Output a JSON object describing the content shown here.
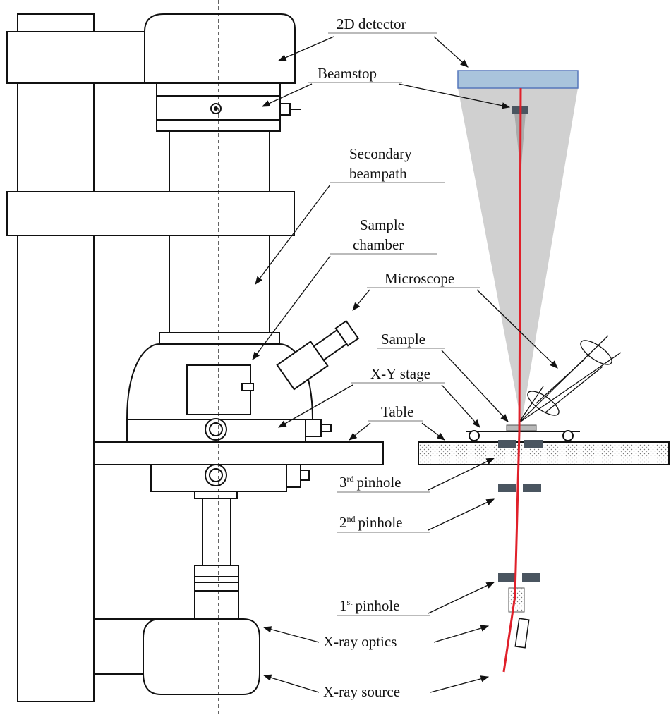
{
  "labels": {
    "detector": "2D detector",
    "beamstop": "Beamstop",
    "secondary_1": "Secondary",
    "secondary_2": "beampath",
    "chamber_1": "Sample",
    "chamber_2": "chamber",
    "microscope": "Microscope",
    "sample": "Sample",
    "xy_stage": "X-Y stage",
    "table": "Table",
    "pinhole3_num": "3",
    "pinhole3_sup": "rd",
    "pinhole3_word": "pinhole",
    "pinhole2_num": "2",
    "pinhole2_sup": "nd",
    "pinhole2_word": "pinhole",
    "pinhole1_num": "1",
    "pinhole1_sup": "st",
    "pinhole1_word": "pinhole",
    "optics": "X-ray optics",
    "source": "X-ray source"
  },
  "colors": {
    "beam": "#e0202a",
    "detector_fill": "#a9c4dc",
    "detector_edge": "#5577bb",
    "cone": "#c8c8c8",
    "pinhole": "#4a5560",
    "table_fill": "#f4f4f4"
  }
}
